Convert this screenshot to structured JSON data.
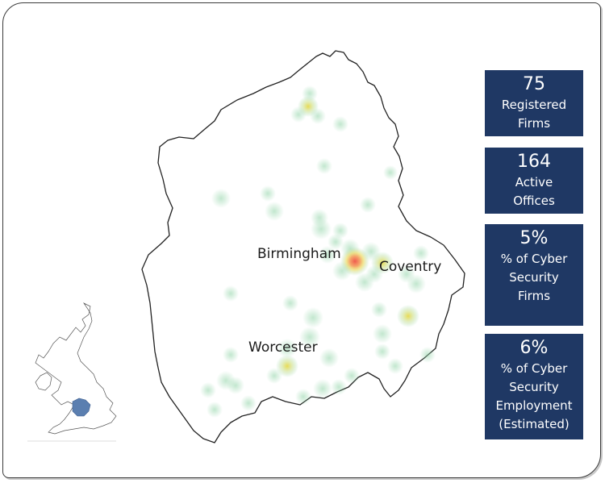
{
  "map": {
    "city_labels": [
      "Birmingham",
      "Coventry",
      "Worcester"
    ],
    "region_outline_color": "#222222",
    "inset_highlight_color": "#5b7fb0"
  },
  "stats": [
    {
      "value": "75",
      "label": "Registered\nFirms"
    },
    {
      "value": "164",
      "label": "Active\nOffices"
    },
    {
      "value": "5%",
      "label": "% of Cyber\nSecurity\nFirms"
    },
    {
      "value": "6%",
      "label": "% of Cyber\nSecurity\nEmployment\n(Estimated)"
    }
  ],
  "colors": {
    "stat_card_bg": "#1f3864",
    "heat_low": "#9fd8b0",
    "heat_mid": "#e6d84a",
    "heat_high": "#f26b5b"
  }
}
